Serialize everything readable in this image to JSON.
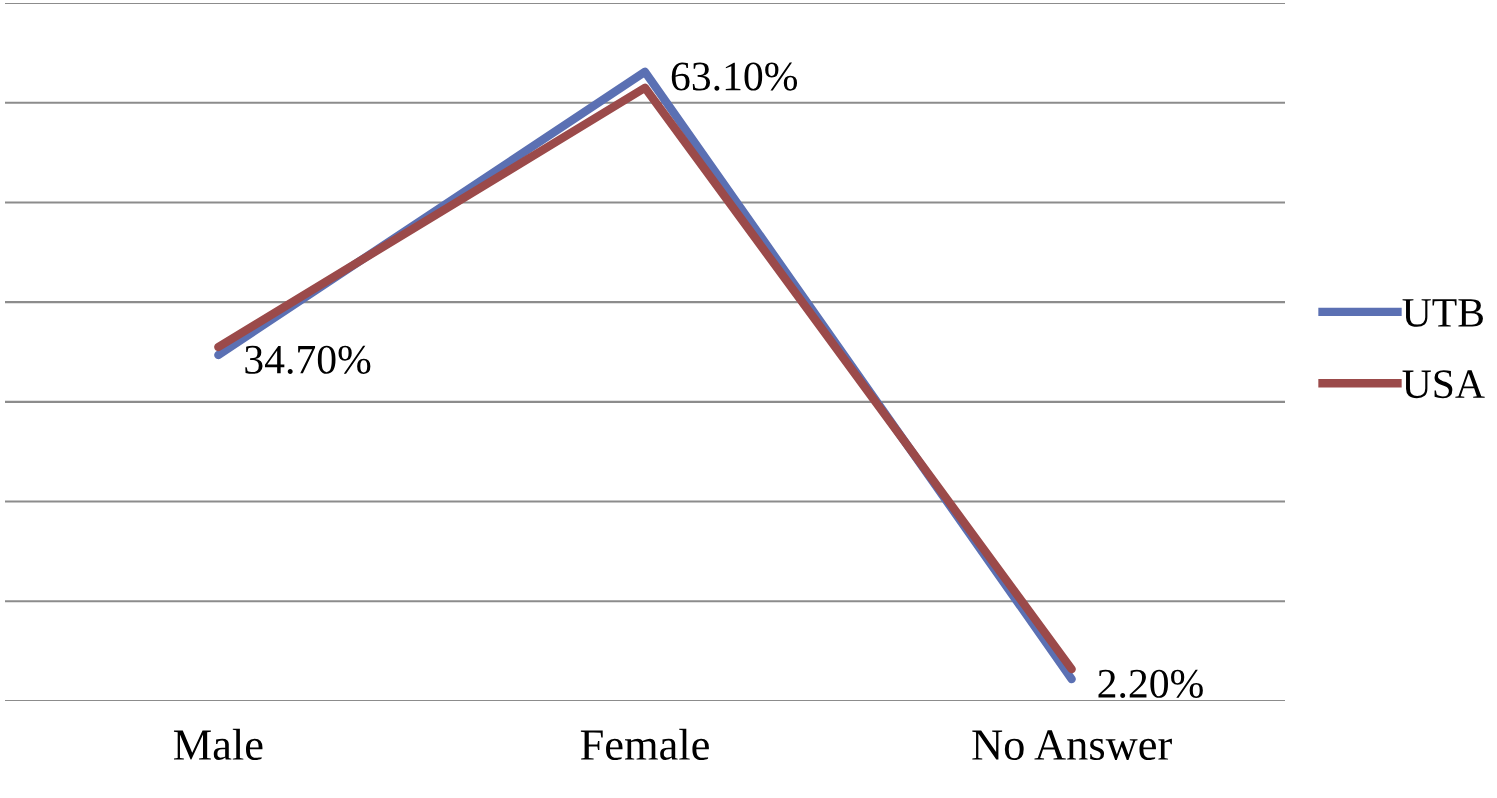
{
  "chart_data": {
    "type": "line",
    "categories": [
      "Male",
      "Female",
      "No Answer"
    ],
    "series": [
      {
        "name": "UTB",
        "color": "#5b70b3",
        "values": [
          34.7,
          63.1,
          2.2
        ],
        "value_labels": [
          "34.70%",
          "63.10%",
          "2.20%"
        ]
      },
      {
        "name": "USA",
        "color": "#9b4a4a",
        "values": [
          35.5,
          61.5,
          3.2
        ]
      }
    ],
    "ylim": [
      0,
      70
    ],
    "yticks": [
      0,
      10,
      20,
      30,
      40,
      50,
      60,
      70
    ],
    "tick_labels": "x",
    "grid": "y",
    "legend": "right"
  }
}
